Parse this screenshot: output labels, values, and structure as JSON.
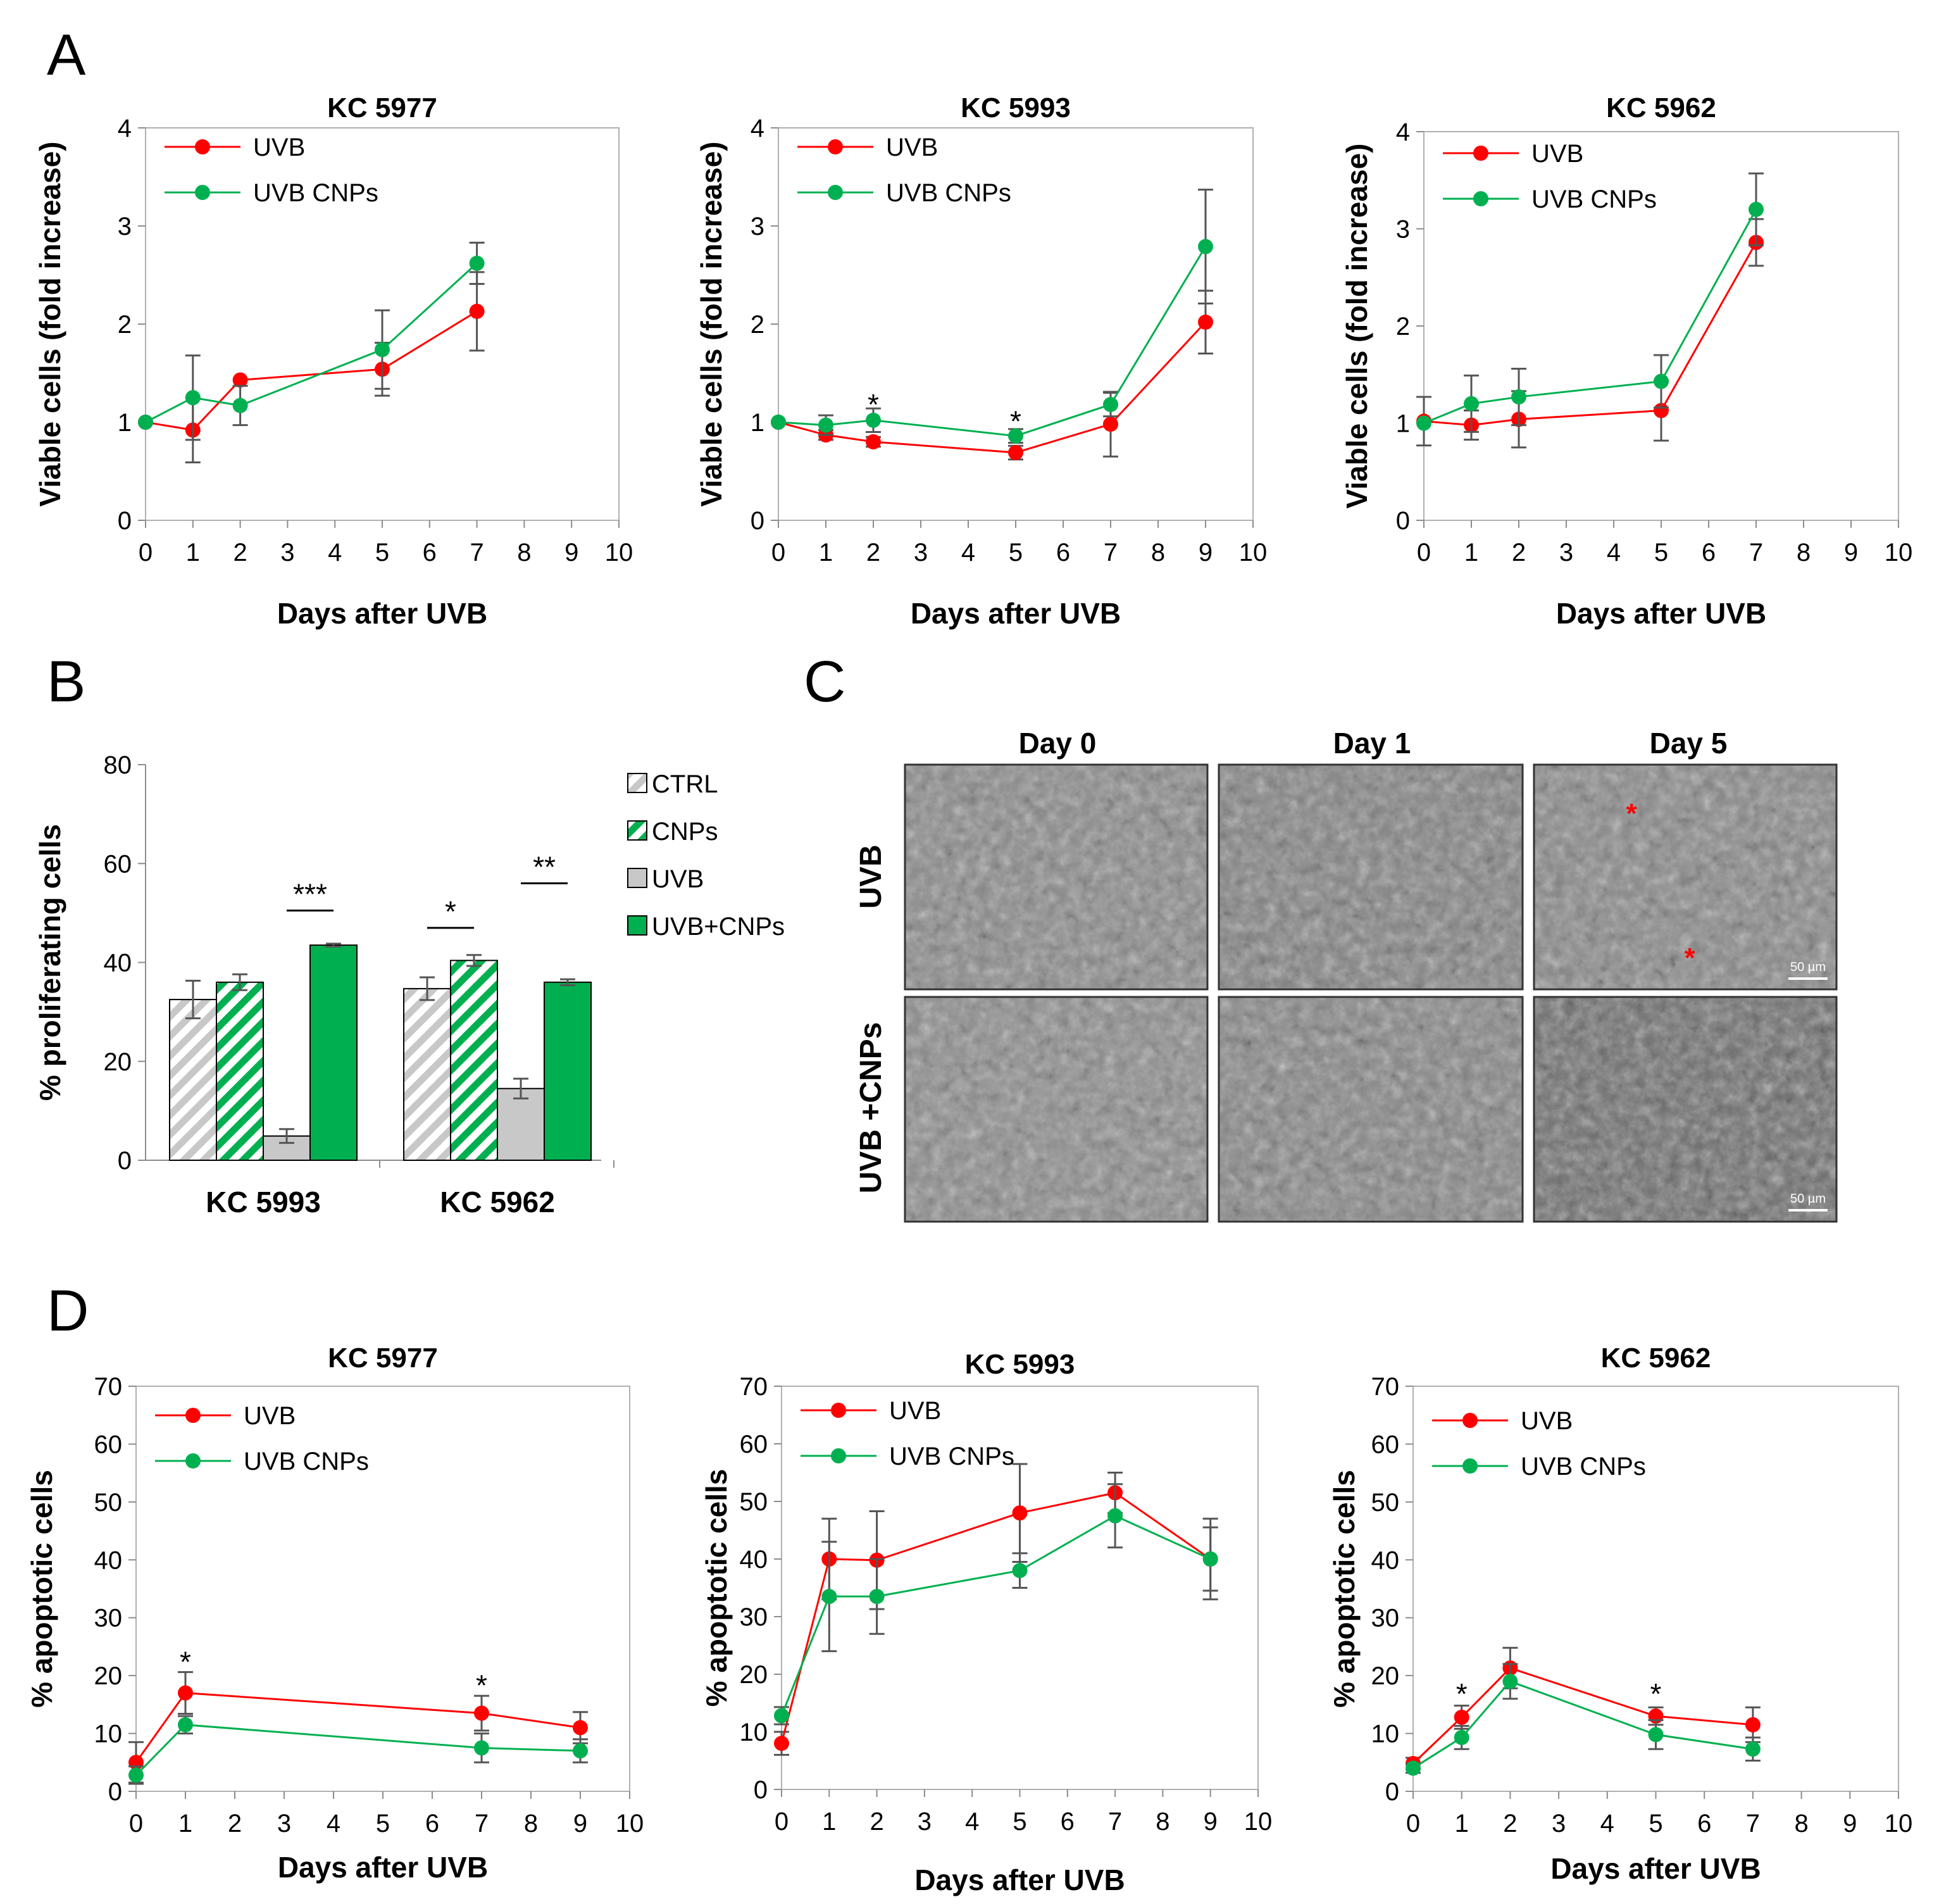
{
  "panel_labels": {
    "A": "A",
    "B": "B",
    "C": "C",
    "D": "D"
  },
  "colors": {
    "uvb": "#ff0000",
    "uvb_cnps": "#00b050",
    "ctrl_hatch": "#c8c8c8",
    "uvb_bar": "#c8c8c8",
    "error": "#555555"
  },
  "chart_data": [
    {
      "id": "A1",
      "type": "line",
      "title": "KC 5977",
      "xlabel": "Days after UVB",
      "ylabel": "Viable cells (fold increase)",
      "xlim": [
        0,
        10
      ],
      "ylim": [
        0,
        4
      ],
      "xticks": [
        "0",
        "1",
        "2",
        "3",
        "4",
        "5",
        "6",
        "7",
        "8",
        "9",
        "10"
      ],
      "yticks": [
        "0",
        "1",
        "2",
        "3",
        "4"
      ],
      "legend": "top-left",
      "series": [
        {
          "name": "UVB",
          "color": "#ff0000",
          "x": [
            0,
            1,
            2,
            5,
            7
          ],
          "y": [
            1.0,
            0.92,
            1.43,
            1.54,
            2.13
          ],
          "err": [
            0,
            0.33,
            0,
            0.27,
            0.4
          ]
        },
        {
          "name": "UVB CNPs",
          "color": "#00b050",
          "x": [
            0,
            1,
            2,
            5,
            7
          ],
          "y": [
            1.0,
            1.25,
            1.17,
            1.74,
            2.62
          ],
          "err": [
            0,
            0.43,
            0.2,
            0.4,
            0.21
          ]
        }
      ],
      "annotations": []
    },
    {
      "id": "A2",
      "type": "line",
      "title": "KC 5993",
      "xlabel": "Days after UVB",
      "ylabel": "Viable cells (fold increase)",
      "xlim": [
        0,
        10
      ],
      "ylim": [
        0,
        4
      ],
      "xticks": [
        "0",
        "1",
        "2",
        "3",
        "4",
        "5",
        "6",
        "7",
        "8",
        "9",
        "10"
      ],
      "yticks": [
        "0",
        "1",
        "2",
        "3",
        "4"
      ],
      "legend": "top-left",
      "series": [
        {
          "name": "UVB",
          "color": "#ff0000",
          "x": [
            0,
            1,
            2,
            5,
            7,
            9
          ],
          "y": [
            1.0,
            0.87,
            0.8,
            0.69,
            0.98,
            2.02
          ],
          "err": [
            0,
            0.05,
            0.05,
            0.07,
            0.33,
            0.32
          ]
        },
        {
          "name": "UVB CNPs",
          "color": "#00b050",
          "x": [
            0,
            1,
            2,
            5,
            7,
            9
          ],
          "y": [
            1.0,
            0.97,
            1.02,
            0.86,
            1.18,
            2.79
          ],
          "err": [
            0,
            0.1,
            0.12,
            0.07,
            0.12,
            0.58
          ]
        }
      ],
      "annotations": [
        {
          "x": 2,
          "y": 1.22,
          "text": "*"
        },
        {
          "x": 5,
          "y": 1.05,
          "text": "*"
        }
      ]
    },
    {
      "id": "A3",
      "type": "line",
      "title": "KC 5962",
      "xlabel": "Days after UVB",
      "ylabel": "Viable cells (fold increase)",
      "xlim": [
        0,
        10
      ],
      "ylim": [
        0,
        4
      ],
      "xticks": [
        "0",
        "1",
        "2",
        "3",
        "4",
        "5",
        "6",
        "7",
        "8",
        "9",
        "10"
      ],
      "yticks": [
        "0",
        "1",
        "2",
        "3",
        "4"
      ],
      "legend": "top-left",
      "series": [
        {
          "name": "UVB",
          "color": "#ff0000",
          "x": [
            0,
            1,
            2,
            5,
            7
          ],
          "y": [
            1.02,
            0.98,
            1.04,
            1.13,
            2.86
          ],
          "err": [
            0.25,
            0.15,
            0.29,
            0.31,
            0.24
          ]
        },
        {
          "name": "UVB CNPs",
          "color": "#00b050",
          "x": [
            0,
            1,
            2,
            5,
            7
          ],
          "y": [
            1.0,
            1.2,
            1.27,
            1.43,
            3.2
          ],
          "err": [
            0,
            0.29,
            0.29,
            0.27,
            0.37
          ]
        }
      ],
      "annotations": []
    },
    {
      "id": "B",
      "type": "bar",
      "title": "",
      "xlabel": "",
      "ylabel": "% proliferating cells",
      "ylim": [
        0,
        80
      ],
      "yticks": [
        "0",
        "20",
        "40",
        "60",
        "80"
      ],
      "categories": [
        "KC 5993",
        "KC 5962"
      ],
      "legend": "right",
      "series": [
        {
          "name": "CTRL",
          "pattern": "hatch-gray",
          "values": [
            32.5,
            34.7
          ],
          "err": [
            3.8,
            2.3
          ]
        },
        {
          "name": "CNPs",
          "pattern": "hatch-green",
          "values": [
            36.0,
            40.4
          ],
          "err": [
            1.6,
            1.1
          ]
        },
        {
          "name": "UVB",
          "pattern": "solid-gray",
          "values": [
            4.9,
            14.5
          ],
          "err": [
            1.4,
            2.0
          ]
        },
        {
          "name": "UVB+CNPs",
          "pattern": "solid-green",
          "values": [
            43.5,
            36.0
          ],
          "err": [
            0.3,
            0.6
          ]
        }
      ],
      "significance": [
        {
          "category": 0,
          "from": 2,
          "to": 3,
          "text": "***",
          "y": 50.5
        },
        {
          "category": 1,
          "from": 0,
          "to": 1,
          "text": "*",
          "y": 47
        },
        {
          "category": 1,
          "from": 2,
          "to": 3,
          "text": "**",
          "y": 56
        }
      ]
    },
    {
      "id": "D1",
      "type": "line",
      "title": "KC 5977",
      "xlabel": "Days after UVB",
      "ylabel": "% apoptotic cells",
      "xlim": [
        0,
        10
      ],
      "ylim": [
        0,
        70
      ],
      "xticks": [
        "0",
        "1",
        "2",
        "3",
        "4",
        "5",
        "6",
        "7",
        "8",
        "9",
        "10"
      ],
      "yticks": [
        "0",
        "10",
        "20",
        "30",
        "40",
        "50",
        "60",
        "70"
      ],
      "legend": "top-left",
      "series": [
        {
          "name": "UVB",
          "color": "#ff0000",
          "x": [
            0,
            1,
            7,
            9
          ],
          "y": [
            5.0,
            17.0,
            13.5,
            11.0
          ],
          "err": [
            3.5,
            3.6,
            3.0,
            2.7
          ]
        },
        {
          "name": "UVB CNPs",
          "color": "#00b050",
          "x": [
            0,
            1,
            7,
            9
          ],
          "y": [
            2.8,
            11.5,
            7.5,
            7.0
          ],
          "err": [
            1.5,
            1.5,
            2.5,
            2.0
          ]
        }
      ],
      "annotations": [
        {
          "x": 1,
          "y": 23,
          "text": "*"
        },
        {
          "x": 7,
          "y": 19,
          "text": "*"
        }
      ]
    },
    {
      "id": "D2",
      "type": "line",
      "title": "KC 5993",
      "xlabel": "Days after UVB",
      "ylabel": "% apoptotic cells",
      "xlim": [
        0,
        10
      ],
      "ylim": [
        0,
        70
      ],
      "xticks": [
        "0",
        "1",
        "2",
        "3",
        "4",
        "5",
        "6",
        "7",
        "8",
        "9",
        "10"
      ],
      "yticks": [
        "0",
        "10",
        "20",
        "30",
        "40",
        "50",
        "60",
        "70"
      ],
      "legend": "top-left",
      "series": [
        {
          "name": "UVB",
          "color": "#ff0000",
          "x": [
            0,
            1,
            2,
            5,
            7,
            9
          ],
          "y": [
            8.0,
            40.0,
            39.8,
            48.0,
            51.5,
            40.0
          ],
          "err": [
            2.0,
            7.0,
            8.5,
            8.5,
            3.5,
            7.0
          ]
        },
        {
          "name": "UVB CNPs",
          "color": "#00b050",
          "x": [
            0,
            1,
            2,
            5,
            7,
            9
          ],
          "y": [
            12.8,
            33.5,
            33.5,
            38.0,
            47.5,
            40.0
          ],
          "err": [
            1.5,
            9.5,
            6.5,
            3.0,
            5.5,
            5.5
          ]
        }
      ],
      "annotations": []
    },
    {
      "id": "D3",
      "type": "line",
      "title": "KC 5962",
      "xlabel": "Days after UVB",
      "ylabel": "% apoptotic cells",
      "xlim": [
        0,
        10
      ],
      "ylim": [
        0,
        70
      ],
      "xticks": [
        "0",
        "1",
        "2",
        "3",
        "4",
        "5",
        "6",
        "7",
        "8",
        "9",
        "10"
      ],
      "yticks": [
        "0",
        "10",
        "20",
        "30",
        "40",
        "50",
        "60",
        "70"
      ],
      "legend": "top-left",
      "series": [
        {
          "name": "UVB",
          "color": "#ff0000",
          "x": [
            0,
            1,
            2,
            5,
            7
          ],
          "y": [
            4.8,
            12.8,
            21.3,
            13.0,
            11.5
          ],
          "err": [
            1.0,
            2.0,
            3.5,
            1.5,
            3.0
          ]
        },
        {
          "name": "UVB CNPs",
          "color": "#00b050",
          "x": [
            0,
            1,
            2,
            5,
            7
          ],
          "y": [
            4.0,
            9.3,
            19.0,
            9.8,
            7.3
          ],
          "err": [
            0.8,
            2.0,
            3.0,
            2.5,
            2.0
          ]
        }
      ],
      "annotations": [
        {
          "x": 1,
          "y": 17.5,
          "text": "*"
        },
        {
          "x": 5,
          "y": 17.5,
          "text": "*"
        }
      ]
    }
  ],
  "micrographs": {
    "columns": [
      "Day 0",
      "Day 1",
      "Day 5"
    ],
    "rows": [
      "UVB",
      "UVB +CNPs"
    ],
    "scale_bar": "50 µm",
    "marker": "*"
  }
}
